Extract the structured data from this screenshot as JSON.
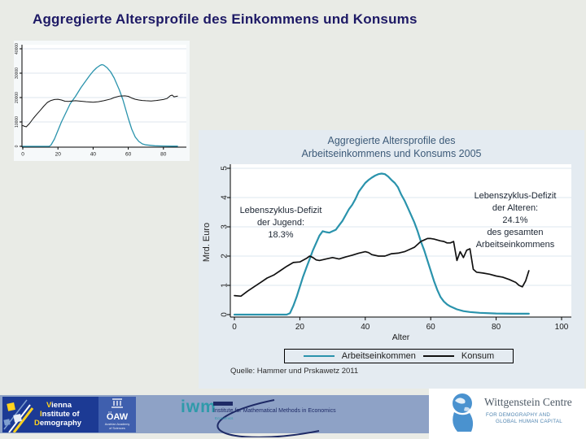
{
  "slide": {
    "title": "Aggregierte Altersprofile des Einkommens und Konsums"
  },
  "chart_data": [
    {
      "id": "inset",
      "type": "line",
      "title": "",
      "xlabel": "",
      "ylabel": "",
      "x_ticks": [
        0,
        20,
        40,
        60,
        80
      ],
      "y_ticks": [
        0,
        10000,
        20000,
        30000,
        40000
      ],
      "xlim": [
        0,
        93
      ],
      "ylim": [
        0,
        42000
      ],
      "grid": "on",
      "series": [
        {
          "name": "Arbeitseinkommen",
          "color": "#2a93ac",
          "x": [
            0,
            5,
            10,
            14,
            15,
            16,
            18,
            20,
            22,
            25,
            27,
            30,
            33,
            35,
            38,
            40,
            42,
            44,
            45,
            46,
            48,
            50,
            52,
            55,
            57,
            60,
            62,
            64,
            66,
            68,
            70,
            75,
            80,
            85,
            88
          ],
          "y": [
            0,
            0,
            0,
            0,
            0,
            500,
            3000,
            6500,
            10000,
            14500,
            17500,
            20500,
            24000,
            26000,
            29000,
            30800,
            32200,
            33200,
            33500,
            33300,
            32200,
            30500,
            28000,
            23000,
            19000,
            11500,
            7000,
            3800,
            2000,
            1000,
            600,
            250,
            120,
            80,
            80
          ]
        },
        {
          "name": "Konsum",
          "color": "#111111",
          "x": [
            0,
            1,
            2,
            4,
            6,
            8,
            10,
            12,
            14,
            16,
            18,
            20,
            22,
            24,
            26,
            28,
            30,
            33,
            36,
            40,
            43,
            46,
            50,
            52,
            55,
            58,
            60,
            62,
            64,
            66,
            68,
            70,
            73,
            76,
            80,
            82,
            84,
            85,
            86,
            88
          ],
          "y": [
            8500,
            8200,
            8000,
            9500,
            11500,
            13200,
            14800,
            16500,
            18000,
            18800,
            19200,
            19300,
            19000,
            18500,
            18400,
            18600,
            18700,
            18500,
            18300,
            18100,
            18300,
            18700,
            19400,
            20000,
            20600,
            20700,
            20500,
            19800,
            19300,
            19000,
            18800,
            18700,
            18600,
            18800,
            19200,
            19600,
            20800,
            21000,
            20300,
            20600
          ]
        }
      ]
    },
    {
      "id": "main",
      "type": "line",
      "title_lines": [
        "Aggregierte Altersprofile des",
        "Arbeitseinkommens und Konsums 2005"
      ],
      "xlabel": "Alter",
      "ylabel": "Mrd. Euro",
      "x_ticks": [
        0,
        20,
        40,
        60,
        80,
        100
      ],
      "y_ticks": [
        0,
        1,
        2,
        3,
        4,
        5
      ],
      "xlim": [
        0,
        103
      ],
      "ylim": [
        0,
        5.2
      ],
      "grid": "on",
      "legend_position": "bottom",
      "annotations": [
        {
          "lines": [
            "Lebenszyklus-Defizit",
            "der Jugend:",
            "18.3%"
          ]
        },
        {
          "lines": [
            "Lebenszyklus-Defizit",
            "der Alteren:",
            "24.1%",
            "des gesamten",
            "Arbeitseinkommens"
          ]
        }
      ],
      "source_note": "Quelle: Hammer und Prskawetz 2011",
      "series": [
        {
          "name": "Arbeitseinkommen",
          "color": "#2a93ac",
          "x": [
            0,
            5,
            10,
            15,
            16,
            17,
            18,
            19,
            20,
            21,
            22,
            23,
            24,
            25,
            26,
            27,
            28,
            29,
            30,
            31,
            32,
            33,
            34,
            35,
            36,
            37,
            38,
            39,
            40,
            41,
            42,
            43,
            44,
            45,
            46,
            47,
            48,
            49,
            50,
            51,
            52,
            53,
            54,
            55,
            56,
            57,
            58,
            59,
            60,
            61,
            62,
            63,
            64,
            65,
            66,
            68,
            70,
            72,
            75,
            80,
            85,
            90
          ],
          "y": [
            0,
            0,
            0,
            0,
            0,
            0.05,
            0.3,
            0.6,
            0.95,
            1.3,
            1.6,
            1.9,
            2.2,
            2.45,
            2.7,
            2.85,
            2.82,
            2.8,
            2.85,
            2.9,
            3.05,
            3.2,
            3.4,
            3.6,
            3.75,
            3.95,
            4.2,
            4.35,
            4.5,
            4.6,
            4.68,
            4.75,
            4.8,
            4.82,
            4.8,
            4.72,
            4.6,
            4.5,
            4.35,
            4.1,
            3.9,
            3.65,
            3.4,
            3.15,
            2.85,
            2.5,
            2.2,
            1.85,
            1.5,
            1.15,
            0.85,
            0.6,
            0.45,
            0.35,
            0.28,
            0.18,
            0.12,
            0.09,
            0.06,
            0.04,
            0.03,
            0.03
          ]
        },
        {
          "name": "Konsum",
          "color": "#111111",
          "x": [
            0,
            2,
            4,
            6,
            8,
            10,
            12,
            14,
            16,
            18,
            20,
            22,
            23,
            24,
            25,
            26,
            28,
            30,
            32,
            34,
            36,
            38,
            40,
            41,
            42,
            44,
            46,
            48,
            50,
            52,
            54,
            55,
            56,
            57,
            58,
            59,
            60,
            61,
            62,
            63,
            64,
            65,
            66,
            67,
            68,
            69,
            70,
            71,
            72,
            73,
            74,
            76,
            78,
            80,
            82,
            84,
            86,
            87,
            88,
            89,
            90
          ],
          "y": [
            0.65,
            0.63,
            0.8,
            0.95,
            1.1,
            1.25,
            1.35,
            1.5,
            1.65,
            1.78,
            1.8,
            1.92,
            2.0,
            1.95,
            1.87,
            1.85,
            1.9,
            1.95,
            1.9,
            1.97,
            2.03,
            2.1,
            2.15,
            2.12,
            2.05,
            2.0,
            2.0,
            2.08,
            2.1,
            2.15,
            2.25,
            2.3,
            2.4,
            2.5,
            2.55,
            2.6,
            2.6,
            2.58,
            2.55,
            2.52,
            2.5,
            2.45,
            2.45,
            2.5,
            1.85,
            2.15,
            1.95,
            2.2,
            2.25,
            1.55,
            1.45,
            1.42,
            1.38,
            1.32,
            1.28,
            1.2,
            1.1,
            1.0,
            0.95,
            1.15,
            1.5
          ]
        }
      ]
    }
  ],
  "footer": {
    "vid": {
      "line1": "Vienna",
      "line2": "Institute of",
      "line3": "Demography"
    },
    "oaw": {
      "acronym": "ÖAW",
      "sub1": "Austrian Academy",
      "sub2": "of Sciences"
    },
    "iwm": {
      "logo": "iwm",
      "name": "Institute for Mathematical Methods in Economics",
      "sub": "Economics"
    },
    "wittgenstein": {
      "name": "Wittgenstein Centre",
      "sub1": "FOR DEMOGRAPHY AND",
      "sub2": "GLOBAL HUMAN CAPITAL"
    }
  }
}
